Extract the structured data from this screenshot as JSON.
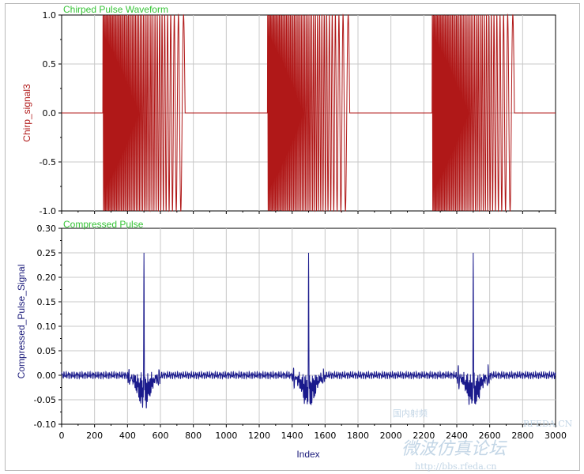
{
  "chart_data": [
    {
      "type": "line",
      "title": "Chirped Pulse Waveform",
      "ylabel": "Chirp_signal3",
      "xlabel": "",
      "xlim": [
        0,
        3000
      ],
      "ylim": [
        -1.0,
        1.0
      ],
      "yticks": [
        "1.0",
        "0.5",
        "0.0",
        "-0.5",
        "-1.0"
      ],
      "grid": true,
      "color": "#b01818",
      "title_color": "#36c436",
      "series": [
        {
          "pulses": [
            {
              "start": 250,
              "end": 750
            },
            {
              "start": 1250,
              "end": 1750
            },
            {
              "start": 2250,
              "end": 2750
            }
          ],
          "baseline": 0.0,
          "amplitude": 1.0
        }
      ]
    },
    {
      "type": "line",
      "title": "Compressed Pulse",
      "ylabel": "Compressed_Pulse_Signal",
      "xlabel": "Index",
      "xlim": [
        0,
        3000
      ],
      "ylim": [
        -0.1,
        0.3
      ],
      "yticks": [
        "0.30",
        "0.25",
        "0.20",
        "0.15",
        "0.10",
        "0.05",
        "0.00",
        "-0.05",
        "-0.10"
      ],
      "xticks": [
        "0",
        "200",
        "400",
        "600",
        "800",
        "1000",
        "1200",
        "1400",
        "1600",
        "1800",
        "2000",
        "2200",
        "2400",
        "2600",
        "2800",
        "3000"
      ],
      "grid": true,
      "color": "#1a1a8c",
      "title_color": "#36c436",
      "series": [
        {
          "peaks": [
            500,
            1500,
            2500
          ],
          "peak_value": 0.25,
          "min_value": -0.09
        }
      ]
    }
  ],
  "watermark": {
    "brand": "RFEDA.CN",
    "cjk_small": "国内射频",
    "cjk_large": "微波仿真论坛",
    "url": "http://bbs.rfeda.cn"
  }
}
